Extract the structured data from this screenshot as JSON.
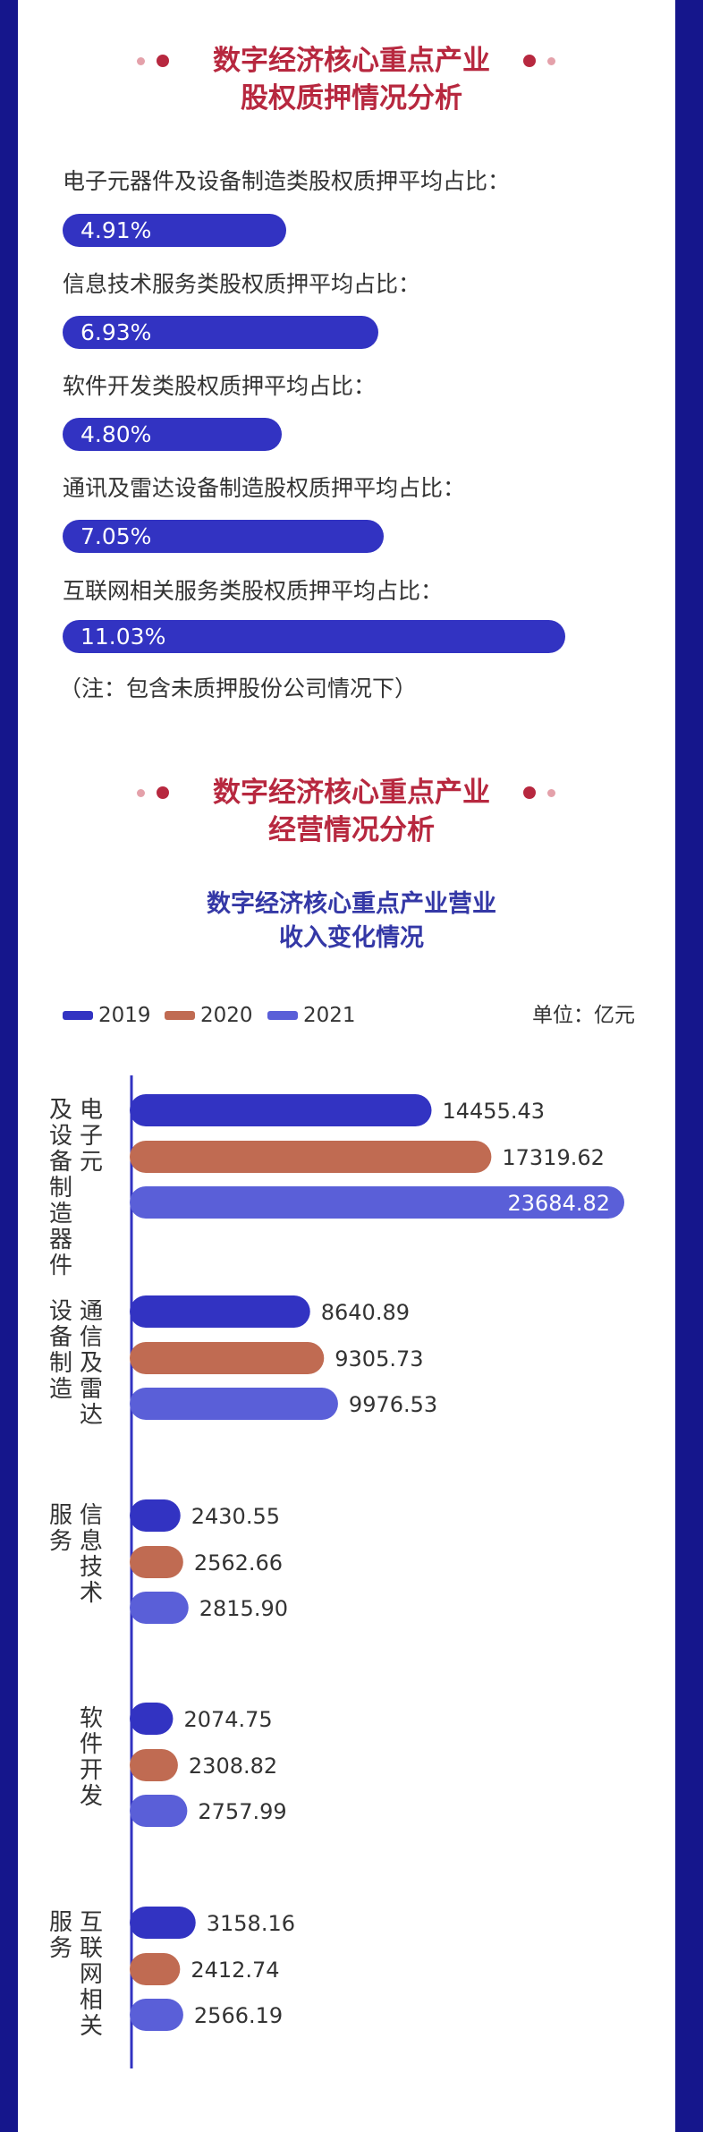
{
  "pledge_section": {
    "title_line1": "数字经济核心重点产业",
    "title_line2": "股权质押情况分析",
    "items": [
      {
        "label": "电子元器件及设备制造类股权质押平均占比：",
        "value_text": "4.91%",
        "value": 4.91
      },
      {
        "label": "信息技术服务类股权质押平均占比：",
        "value_text": "6.93%",
        "value": 6.93
      },
      {
        "label": "软件开发类股权质押平均占比：",
        "value_text": "4.80%",
        "value": 4.8
      },
      {
        "label": "通讯及雷达设备制造股权质押平均占比：",
        "value_text": "7.05%",
        "value": 7.05
      },
      {
        "label": "互联网相关服务类股权质押平均占比：",
        "value_text": "11.03%",
        "value": 11.03
      }
    ],
    "note": "（注：包含未质押股份公司情况下）",
    "bar_color": "#3233c2"
  },
  "operation_section": {
    "title_line1": "数字经济核心重点产业",
    "title_line2": "经营情况分析"
  },
  "chart_data": {
    "type": "bar",
    "orientation": "horizontal",
    "title_line1": "数字经济核心重点产业营业",
    "title_line2": "收入变化情况",
    "unit": "单位：亿元",
    "categories": [
      {
        "col1": "电子元",
        "col2": "及设备制造器件"
      },
      {
        "col1": "通信及雷达",
        "col2": "设备制造"
      },
      {
        "col1": "信息技术",
        "col2": "服务"
      },
      {
        "col1": "软件开发",
        "col2": ""
      },
      {
        "col1": "互联网相关",
        "col2": "服务"
      }
    ],
    "series": [
      {
        "name": "2019",
        "color": "#3233c2",
        "values": [
          14455.43,
          8640.89,
          2430.55,
          2074.75,
          3158.16
        ],
        "labels": [
          "14455.43",
          "8640.89",
          "2430.55",
          "2074.75",
          "3158.16"
        ]
      },
      {
        "name": "2020",
        "color": "#c06b52",
        "values": [
          17319.62,
          9305.73,
          2562.66,
          2308.82,
          2412.74
        ],
        "labels": [
          "17319.62",
          "9305.73",
          "2562.66",
          "2308.82",
          "2412.74"
        ]
      },
      {
        "name": "2021",
        "color": "#5a5fd8",
        "values": [
          23684.82,
          9976.53,
          2815.9,
          2757.99,
          2566.19
        ],
        "labels": [
          "23684.82",
          "9976.53",
          "2815.90",
          "2757.99",
          "2566.19"
        ]
      }
    ],
    "axis_color": "#3233c2",
    "grid": false,
    "legend_position": "top-left"
  }
}
